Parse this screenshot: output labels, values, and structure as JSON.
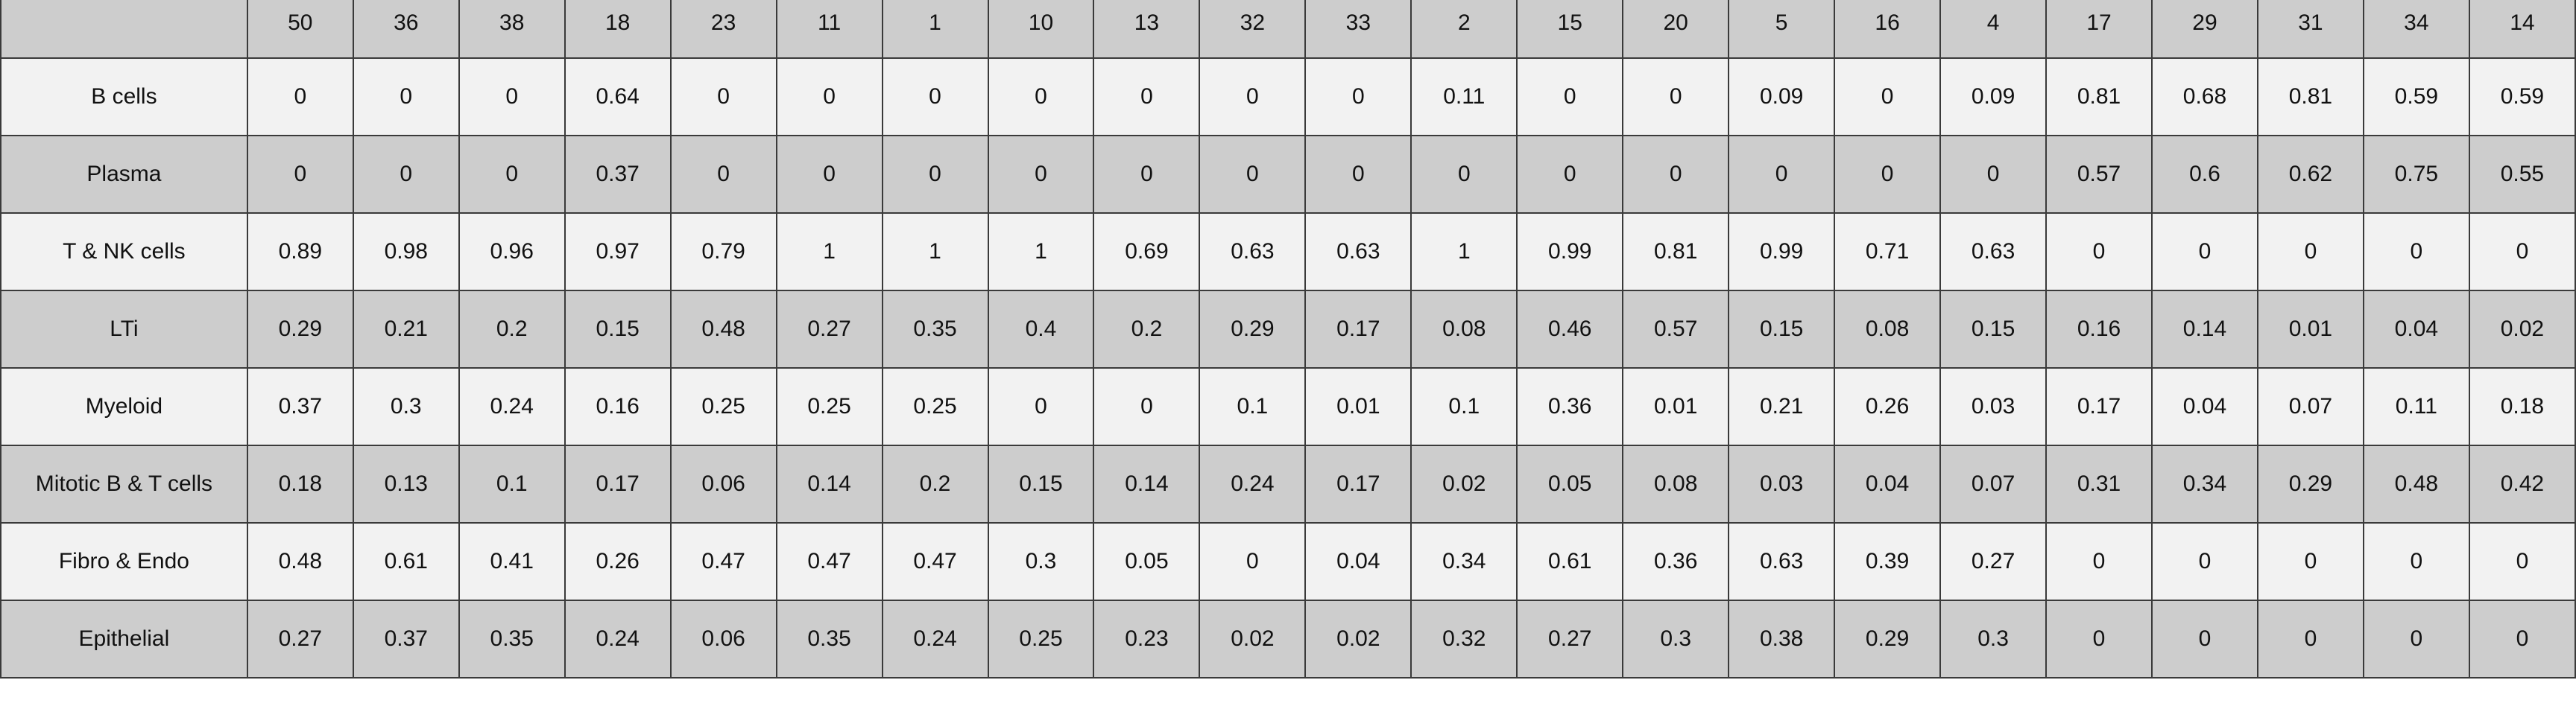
{
  "chart_data": {
    "type": "table",
    "columns": [
      "50",
      "36",
      "38",
      "18",
      "23",
      "11",
      "1",
      "10",
      "13",
      "32",
      "33",
      "2",
      "15",
      "20",
      "5",
      "16",
      "4",
      "17",
      "29",
      "31",
      "34",
      "14"
    ],
    "rows": [
      {
        "label": "B cells",
        "values": [
          "0",
          "0",
          "0",
          "0.64",
          "0",
          "0",
          "0",
          "0",
          "0",
          "0",
          "0",
          "0.11",
          "0",
          "0",
          "0.09",
          "0",
          "0.09",
          "0.81",
          "0.68",
          "0.81",
          "0.59",
          "0.59"
        ]
      },
      {
        "label": "Plasma",
        "values": [
          "0",
          "0",
          "0",
          "0.37",
          "0",
          "0",
          "0",
          "0",
          "0",
          "0",
          "0",
          "0",
          "0",
          "0",
          "0",
          "0",
          "0",
          "0.57",
          "0.6",
          "0.62",
          "0.75",
          "0.55"
        ]
      },
      {
        "label": "T & NK cells",
        "values": [
          "0.89",
          "0.98",
          "0.96",
          "0.97",
          "0.79",
          "1",
          "1",
          "1",
          "0.69",
          "0.63",
          "0.63",
          "1",
          "0.99",
          "0.81",
          "0.99",
          "0.71",
          "0.63",
          "0",
          "0",
          "0",
          "0",
          "0"
        ]
      },
      {
        "label": "LTi",
        "values": [
          "0.29",
          "0.21",
          "0.2",
          "0.15",
          "0.48",
          "0.27",
          "0.35",
          "0.4",
          "0.2",
          "0.29",
          "0.17",
          "0.08",
          "0.46",
          "0.57",
          "0.15",
          "0.08",
          "0.15",
          "0.16",
          "0.14",
          "0.01",
          "0.04",
          "0.02"
        ]
      },
      {
        "label": "Myeloid",
        "values": [
          "0.37",
          "0.3",
          "0.24",
          "0.16",
          "0.25",
          "0.25",
          "0.25",
          "0",
          "0",
          "0.1",
          "0.01",
          "0.1",
          "0.36",
          "0.01",
          "0.21",
          "0.26",
          "0.03",
          "0.17",
          "0.04",
          "0.07",
          "0.11",
          "0.18"
        ]
      },
      {
        "label": "Mitotic B & T cells",
        "values": [
          "0.18",
          "0.13",
          "0.1",
          "0.17",
          "0.06",
          "0.14",
          "0.2",
          "0.15",
          "0.14",
          "0.24",
          "0.17",
          "0.02",
          "0.05",
          "0.08",
          "0.03",
          "0.04",
          "0.07",
          "0.31",
          "0.34",
          "0.29",
          "0.48",
          "0.42"
        ]
      },
      {
        "label": "Fibro & Endo",
        "values": [
          "0.48",
          "0.61",
          "0.41",
          "0.26",
          "0.47",
          "0.47",
          "0.47",
          "0.3",
          "0.05",
          "0",
          "0.04",
          "0.34",
          "0.61",
          "0.36",
          "0.63",
          "0.39",
          "0.27",
          "0",
          "0",
          "0",
          "0",
          "0"
        ]
      },
      {
        "label": "Epithelial",
        "values": [
          "0.27",
          "0.37",
          "0.35",
          "0.24",
          "0.06",
          "0.35",
          "0.24",
          "0.25",
          "0.23",
          "0.02",
          "0.02",
          "0.32",
          "0.27",
          "0.3",
          "0.38",
          "0.29",
          "0.3",
          "0",
          "0",
          "0",
          "0",
          "0"
        ]
      }
    ]
  },
  "colors": {
    "header_bg": "#cdcdcd",
    "row_light_bg": "#f2f2f2",
    "row_dark_bg": "#cdcdcd",
    "border": "#3a3a3a",
    "text": "#111111"
  }
}
